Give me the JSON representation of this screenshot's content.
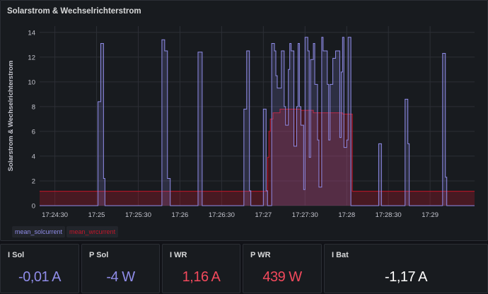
{
  "panel": {
    "title": "Solarstrom & Wechselrichterstrom"
  },
  "chart_data": {
    "type": "line",
    "title": "Solarstrom & Wechselrichterstrom",
    "ylabel": "Solarstrom & Wechselrichterstrom",
    "xlabel": "",
    "ylim": [
      0,
      14.5
    ],
    "xlim": [
      "17:24:19",
      "17:29:32"
    ],
    "yticks": [
      0,
      2,
      4,
      6,
      8,
      10,
      12,
      14
    ],
    "xticks": [
      "17:24:30",
      "17:25",
      "17:25:30",
      "17:26",
      "17:26:30",
      "17:27",
      "17:27:30",
      "17:28",
      "17:28:30",
      "17:29"
    ],
    "grid": true,
    "legend_position": "bottom-left",
    "series": [
      {
        "name": "mean_solcurrent",
        "color": "#8f8ce8",
        "step": true,
        "fill": true,
        "points": [
          [
            "17:24:19",
            0
          ],
          [
            "17:25:00",
            0
          ],
          [
            "17:25:01",
            8.4
          ],
          [
            "17:25:03",
            13.1
          ],
          [
            "17:25:05",
            2.2
          ],
          [
            "17:25:06",
            0
          ],
          [
            "17:25:46",
            0
          ],
          [
            "17:25:47",
            13.4
          ],
          [
            "17:25:49",
            12.5
          ],
          [
            "17:25:51",
            2.2
          ],
          [
            "17:25:53",
            0
          ],
          [
            "17:26:12",
            0
          ],
          [
            "17:26:13",
            12.4
          ],
          [
            "17:26:16",
            0
          ],
          [
            "17:26:45",
            0
          ],
          [
            "17:26:46",
            7.8
          ],
          [
            "17:26:48",
            12.5
          ],
          [
            "17:26:50",
            1.2
          ],
          [
            "17:26:51",
            0
          ],
          [
            "17:26:59",
            0
          ],
          [
            "17:27:00",
            7.8
          ],
          [
            "17:27:02",
            1.2
          ],
          [
            "17:27:03",
            0
          ],
          [
            "17:27:05",
            0
          ],
          [
            "17:27:06",
            13.1
          ],
          [
            "17:27:08",
            12.5
          ],
          [
            "17:27:09",
            10.5
          ],
          [
            "17:27:10",
            9.5
          ],
          [
            "17:27:13",
            12.5
          ],
          [
            "17:27:15",
            8.0
          ],
          [
            "17:27:16",
            6.5
          ],
          [
            "17:27:18",
            11.0
          ],
          [
            "17:27:19",
            13.1
          ],
          [
            "17:27:20",
            12.5
          ],
          [
            "17:27:22",
            4.8
          ],
          [
            "17:27:24",
            8.0
          ],
          [
            "17:27:25",
            13.1
          ],
          [
            "17:27:26",
            8.0
          ],
          [
            "17:27:27",
            6.5
          ],
          [
            "17:27:29",
            1.3
          ],
          [
            "17:27:30",
            13.6
          ],
          [
            "17:27:32",
            12.5
          ],
          [
            "17:27:33",
            3.9
          ],
          [
            "17:27:34",
            11.8
          ],
          [
            "17:27:36",
            13.1
          ],
          [
            "17:27:37",
            9.8
          ],
          [
            "17:27:39",
            5.3
          ],
          [
            "17:27:40",
            1.5
          ],
          [
            "17:27:42",
            13.6
          ],
          [
            "17:27:43",
            12.5
          ],
          [
            "17:27:46",
            9.8
          ],
          [
            "17:27:47",
            5.3
          ],
          [
            "17:27:48",
            9.8
          ],
          [
            "17:27:50",
            11.9
          ],
          [
            "17:27:52",
            12.5
          ],
          [
            "17:27:55",
            5.5
          ],
          [
            "17:27:56",
            10.8
          ],
          [
            "17:27:57",
            13.6
          ],
          [
            "17:27:58",
            4.7
          ],
          [
            "17:28:00",
            5.3
          ],
          [
            "17:28:01",
            13.6
          ],
          [
            "17:28:03",
            0
          ],
          [
            "17:28:22",
            0
          ],
          [
            "17:28:23",
            5.0
          ],
          [
            "17:28:25",
            0
          ],
          [
            "17:28:41",
            0
          ],
          [
            "17:28:42",
            8.6
          ],
          [
            "17:28:44",
            5.0
          ],
          [
            "17:28:45",
            0
          ],
          [
            "17:29:08",
            0
          ],
          [
            "17:29:09",
            12.3
          ],
          [
            "17:29:11",
            2.3
          ],
          [
            "17:29:12",
            0
          ],
          [
            "17:29:32",
            0
          ]
        ]
      },
      {
        "name": "mean_wrcurrent",
        "color": "#c4162a",
        "step": true,
        "fill": true,
        "points": [
          [
            "17:24:19",
            1.16
          ],
          [
            "17:27:02",
            1.16
          ],
          [
            "17:27:03",
            3.9
          ],
          [
            "17:27:04",
            6.0
          ],
          [
            "17:27:05",
            7.0
          ],
          [
            "17:27:07",
            7.5
          ],
          [
            "17:27:12",
            7.8
          ],
          [
            "17:27:26",
            7.8
          ],
          [
            "17:27:27",
            7.7
          ],
          [
            "17:27:36",
            7.5
          ],
          [
            "17:27:56",
            7.5
          ],
          [
            "17:27:57",
            7.4
          ],
          [
            "17:28:03",
            7.4
          ],
          [
            "17:28:04",
            1.16
          ],
          [
            "17:29:32",
            1.16
          ]
        ]
      }
    ]
  },
  "legend": [
    {
      "label": "mean_solcurrent",
      "color": "#8f8ce8"
    },
    {
      "label": "mean_wrcurrent",
      "color": "#c4162a"
    }
  ],
  "stats": [
    {
      "title": "I Sol",
      "value": "-0,01 A",
      "color": "#8f8ce8"
    },
    {
      "title": "P Sol",
      "value": "-4 W",
      "color": "#8f8ce8"
    },
    {
      "title": "I WR",
      "value": "1,16 A",
      "color": "#f2495c"
    },
    {
      "title": "P WR",
      "value": "439 W",
      "color": "#f2495c"
    },
    {
      "title": "I Bat",
      "value": "-1,17 A",
      "color": "#ffffff"
    }
  ]
}
